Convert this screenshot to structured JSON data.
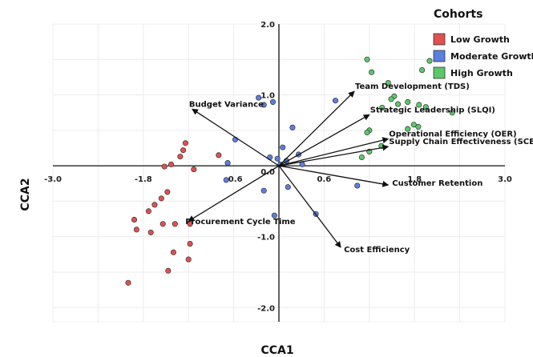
{
  "chart_data": {
    "type": "scatter",
    "title": "",
    "xlabel": "CCA1",
    "ylabel": "CCA2",
    "xlim": [
      -3.0,
      3.0
    ],
    "ylim": [
      -2.2,
      2.0
    ],
    "x_ticks": [
      {
        "value": -3.0,
        "label": "-3.0"
      },
      {
        "value": -1.8,
        "label": "-1.8"
      },
      {
        "value": -0.6,
        "label": "-0.6"
      },
      {
        "value": 0.6,
        "label": "0.6"
      },
      {
        "value": 1.8,
        "label": "1.8"
      },
      {
        "value": 3.0,
        "label": "3.0"
      }
    ],
    "y_ticks": [
      {
        "value": 2.0,
        "label": "2.0"
      },
      {
        "value": 1.0,
        "label": "1.0"
      },
      {
        "value": 0.0,
        "label": "0.0"
      },
      {
        "value": -1.0,
        "label": "-1.0"
      },
      {
        "value": -2.0,
        "label": "-2.0"
      }
    ],
    "grid": true,
    "legend": {
      "title": "Cohorts",
      "position": "top-right"
    },
    "series": [
      {
        "name": "Low Growth",
        "color": "#e05050",
        "points": [
          [
            -1.24,
            0.32
          ],
          [
            -1.27,
            0.22
          ],
          [
            -1.31,
            0.13
          ],
          [
            -1.43,
            0.02
          ],
          [
            -1.52,
            -0.01
          ],
          [
            -1.13,
            -0.05
          ],
          [
            -0.8,
            0.15
          ],
          [
            -1.48,
            -0.37
          ],
          [
            -1.56,
            -0.46
          ],
          [
            -1.65,
            -0.55
          ],
          [
            -1.73,
            -0.64
          ],
          [
            -1.92,
            -0.76
          ],
          [
            -1.54,
            -0.82
          ],
          [
            -1.7,
            -0.94
          ],
          [
            -1.38,
            -0.82
          ],
          [
            -1.18,
            -0.82
          ],
          [
            -1.18,
            -1.1
          ],
          [
            -1.4,
            -1.22
          ],
          [
            -1.2,
            -1.32
          ],
          [
            -1.47,
            -1.48
          ],
          [
            -2.0,
            -1.65
          ],
          [
            -1.89,
            -0.9
          ]
        ]
      },
      {
        "name": "Moderate Growth",
        "color": "#5b7fe0",
        "points": [
          [
            -0.27,
            0.96
          ],
          [
            -0.08,
            0.9
          ],
          [
            -0.2,
            0.86
          ],
          [
            -0.58,
            0.37
          ],
          [
            -0.68,
            0.04
          ],
          [
            -0.7,
            -0.2
          ],
          [
            0.18,
            0.54
          ],
          [
            0.05,
            0.26
          ],
          [
            -0.12,
            0.12
          ],
          [
            -0.02,
            0.1
          ],
          [
            0.1,
            0.07
          ],
          [
            0.26,
            0.16
          ],
          [
            0.31,
            0.02
          ],
          [
            0.02,
            0.02
          ],
          [
            0.12,
            -0.3
          ],
          [
            -0.2,
            -0.35
          ],
          [
            -0.06,
            -0.7
          ],
          [
            0.49,
            -0.68
          ],
          [
            1.04,
            -0.28
          ],
          [
            0.75,
            0.92
          ]
        ]
      },
      {
        "name": "High Growth",
        "color": "#5cc86a",
        "points": [
          [
            1.17,
            1.5
          ],
          [
            1.23,
            1.32
          ],
          [
            1.45,
            1.17
          ],
          [
            2.0,
            1.48
          ],
          [
            1.9,
            1.35
          ],
          [
            1.53,
            0.98
          ],
          [
            1.49,
            0.94
          ],
          [
            1.58,
            0.87
          ],
          [
            1.71,
            0.9
          ],
          [
            1.86,
            0.86
          ],
          [
            1.95,
            0.83
          ],
          [
            2.3,
            0.75
          ],
          [
            1.37,
            0.82
          ],
          [
            1.79,
            0.58
          ],
          [
            1.85,
            0.55
          ],
          [
            1.71,
            0.52
          ],
          [
            1.2,
            0.5
          ],
          [
            1.17,
            0.47
          ],
          [
            1.36,
            0.28
          ],
          [
            1.2,
            0.2
          ],
          [
            1.1,
            0.12
          ]
        ]
      }
    ],
    "vectors": [
      {
        "label": "Team Development (TDS)",
        "x": 1.0,
        "y": 1.05
      },
      {
        "label": "Strategic Leadership (SLQI)",
        "x": 1.2,
        "y": 0.72
      },
      {
        "label": "Operational Efficiency (OER)",
        "x": 1.45,
        "y": 0.38
      },
      {
        "label": "Supply Chain Effectiveness (SCEI)",
        "x": 1.45,
        "y": 0.27
      },
      {
        "label": "Customer Retention",
        "x": 1.45,
        "y": -0.27
      },
      {
        "label": "Budget Variance",
        "x": -1.15,
        "y": 0.8
      },
      {
        "label": "Procurement Cycle Time",
        "x": -1.2,
        "y": -0.78
      },
      {
        "label": "Cost Efficiency",
        "x": 0.82,
        "y": -1.15
      }
    ]
  }
}
